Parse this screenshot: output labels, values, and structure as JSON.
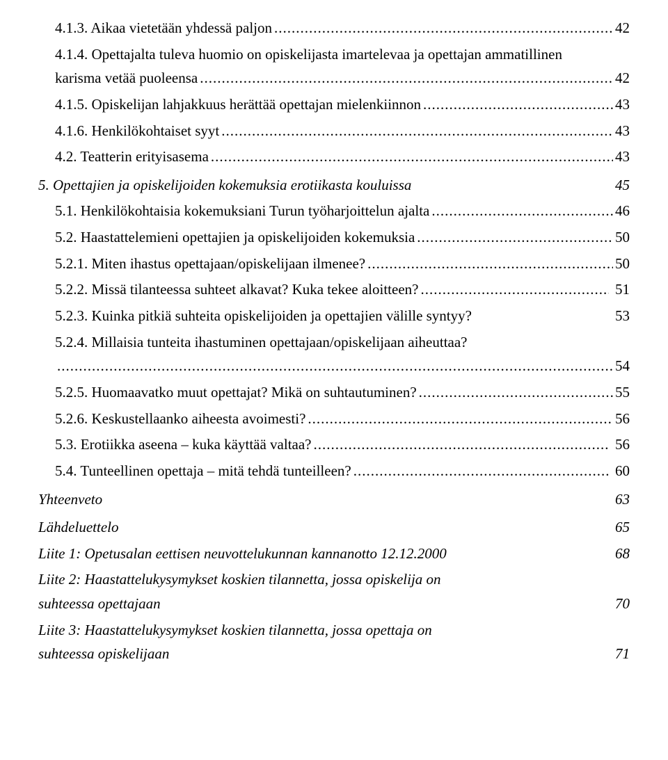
{
  "entries": [
    {
      "label": "4.1.3. Aikaa vietetään yhdessä paljon",
      "page": "42",
      "indent": 1,
      "leader": true
    },
    {
      "label": "4.1.4. Opettajalta tuleva huomio on opiskelijasta imartelevaa ja opettajan ammatillinen karisma vetää puoleensa",
      "page": "42",
      "indent": 1,
      "leader": true,
      "wrap": true,
      "splitAt": 10
    },
    {
      "label": "4.1.5. Opiskelijan lahjakkuus herättää opettajan mielenkiinnon",
      "page": "43",
      "indent": 1,
      "leader": true
    },
    {
      "label": "4.1.6. Henkilökohtaiset syyt",
      "page": "43",
      "indent": 1,
      "leader": true
    },
    {
      "label": "4.2. Teatterin erityisasema",
      "page": "43",
      "indent": 1,
      "leader": true
    },
    {
      "label": "5. Opettajien ja opiskelijoiden kokemuksia erotiikasta kouluissa",
      "page": "45",
      "indent": 0,
      "leader": false,
      "italic": true,
      "section": true
    },
    {
      "label": "5.1. Henkilökohtaisia kokemuksiani Turun työharjoittelun ajalta",
      "page": "46",
      "indent": 1,
      "leader": true
    },
    {
      "label": "5.2. Haastattelemieni opettajien ja opiskelijoiden kokemuksia",
      "page": "50",
      "indent": 1,
      "leader": true
    },
    {
      "label": "5.2.1. Miten ihastus opettajaan/opiskelijaan ilmenee?",
      "page": "50",
      "indent": 2,
      "leader": true
    },
    {
      "label": "5.2.2. Missä tilanteessa suhteet alkavat? Kuka tekee aloitteen?",
      "page": "51",
      "indent": 2,
      "leader": true,
      "spacedPage": true
    },
    {
      "label": "5.2.3. Kuinka pitkiä suhteita opiskelijoiden ja opettajien välille syntyy?",
      "page": "53",
      "indent": 2,
      "leader": false,
      "spacedPage": true
    },
    {
      "label": "5.2.4. Millaisia tunteita ihastuminen opettajaan/opiskelijaan aiheuttaa?",
      "page": "54",
      "indent": 2,
      "leader": true,
      "leaderOnly": true
    },
    {
      "label": "5.2.5. Huomaavatko muut opettajat? Mikä on suhtautuminen?",
      "page": "55",
      "indent": 2,
      "leader": true
    },
    {
      "label": "5.2.6. Keskustellaanko aiheesta avoimesti?",
      "page": "56",
      "indent": 2,
      "leader": true
    },
    {
      "label": "5.3. Erotiikka aseena – kuka käyttää valtaa?",
      "page": "56",
      "indent": 1,
      "leader": true,
      "spacedPage": true
    },
    {
      "label": "5.4. Tunteellinen opettaja – mitä tehdä tunteilleen?",
      "page": "60",
      "indent": 1,
      "leader": true,
      "spacedPage": true
    },
    {
      "label": "Yhteenveto",
      "page": "63",
      "indent": 0,
      "leader": false,
      "italic": true,
      "section": true
    },
    {
      "label": "Lähdeluettelo",
      "page": "65",
      "indent": 0,
      "leader": false,
      "italic": true,
      "section": true
    },
    {
      "label": "Liite 1: Opetusalan eettisen neuvottelukunnan kannanotto 12.12.2000",
      "page": "68",
      "indent": 0,
      "leader": false,
      "italic": true
    },
    {
      "label": "Liite 2: Haastattelukysymykset koskien tilannetta, jossa opiskelija on suhteessa opettajaan",
      "page": "70",
      "indent": 0,
      "leader": false,
      "italic": true,
      "wrap": true,
      "splitAt": 8
    },
    {
      "label": "Liite 3: Haastattelukysymykset koskien tilannetta, jossa opettaja on suhteessa opiskelijaan",
      "page": "71",
      "indent": 0,
      "leader": false,
      "italic": true,
      "wrap": true,
      "splitAt": 8
    }
  ]
}
